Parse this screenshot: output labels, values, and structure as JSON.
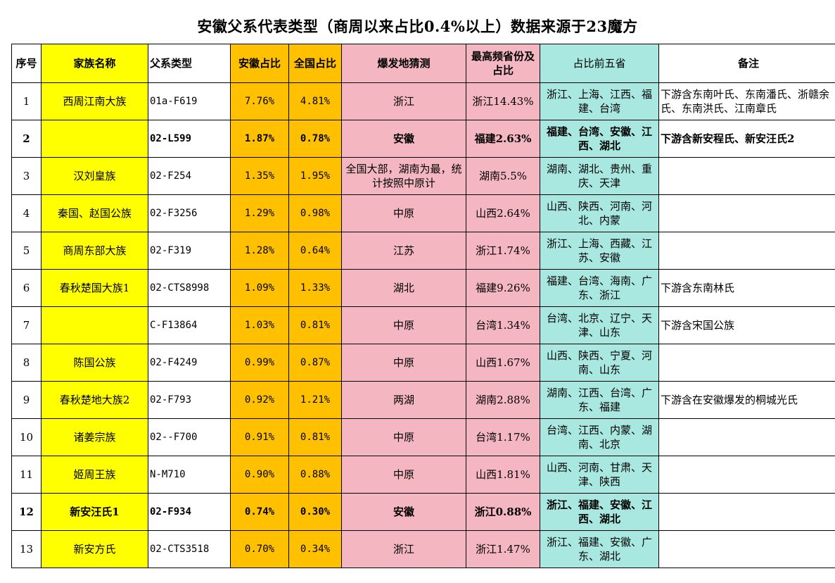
{
  "title": "安徽父系代表类型（商周以来占比0.4%以上）数据来源于23魔方",
  "headers": {
    "seq": "序号",
    "name": "家族名称",
    "type": "父系类型",
    "anhui": "安徽占比",
    "national": "全国占比",
    "origin": "爆发地猜测",
    "max": "最高频省份及占比",
    "top5": "占比前五省",
    "note": "备注"
  },
  "rows": [
    {
      "seq": "1",
      "name": "西周江南大族",
      "type": "01a-F619",
      "anhui": "7.76%",
      "national": "4.81%",
      "origin": "浙江",
      "max": "浙江14.43%",
      "top5": "浙江、上海、江西、福建、台湾",
      "note": "下游含东南叶氏、东南潘氏、浙赣余氏、东南洪氏、江南章氏",
      "bold": false
    },
    {
      "seq": "2",
      "name": "",
      "type": "02-L599",
      "anhui": "1.87%",
      "national": "0.78%",
      "origin": "安徽",
      "max": "福建2.63%",
      "top5": "福建、台湾、安徽、江西、湖北",
      "note": "下游含新安程氏、新安汪氏2",
      "bold": true
    },
    {
      "seq": "3",
      "name": "汉刘皇族",
      "type": "02-F254",
      "anhui": "1.35%",
      "national": "1.95%",
      "origin": "全国大部，湖南为最，统计按照中原计",
      "max": "湖南5.5%",
      "top5": "湖南、湖北、贵州、重庆、天津",
      "note": "",
      "bold": false
    },
    {
      "seq": "4",
      "name": "秦国、赵国公族",
      "type": "02-F3256",
      "anhui": "1.29%",
      "national": "0.98%",
      "origin": "中原",
      "max": "山西2.64%",
      "top5": "山西、陕西、河南、河北、内蒙",
      "note": "",
      "bold": false
    },
    {
      "seq": "5",
      "name": "商周东部大族",
      "type": "02-F319",
      "anhui": "1.28%",
      "national": "0.64%",
      "origin": "江苏",
      "max": "浙江1.74%",
      "top5": "浙江、上海、西藏、江苏、安徽",
      "note": "",
      "bold": false
    },
    {
      "seq": "6",
      "name": "春秋楚国大族1",
      "type": "02-CTS8998",
      "anhui": "1.09%",
      "national": "1.33%",
      "origin": "湖北",
      "max": "福建9.26%",
      "top5": "福建、台湾、海南、广东、浙江",
      "note": "下游含东南林氏",
      "bold": false
    },
    {
      "seq": "7",
      "name": "",
      "type": "C-F13864",
      "anhui": "1.03%",
      "national": "0.81%",
      "origin": "中原",
      "max": "台湾1.34%",
      "top5": "台湾、北京、辽宁、天津、山东",
      "note": "下游含宋国公族",
      "bold": false
    },
    {
      "seq": "8",
      "name": "陈国公族",
      "type": "02-F4249",
      "anhui": "0.99%",
      "national": "0.87%",
      "origin": "中原",
      "max": "山西1.67%",
      "top5": "山西、陕西、宁夏、河南、山东",
      "note": "",
      "bold": false
    },
    {
      "seq": "9",
      "name": "春秋楚地大族2",
      "type": "02-F793",
      "anhui": "0.92%",
      "national": "1.21%",
      "origin": "两湖",
      "max": "湖南2.88%",
      "top5": "湖南、江西、台湾、广东、福建",
      "note": "下游含在安徽爆发的桐城光氏",
      "bold": false
    },
    {
      "seq": "10",
      "name": "诸姜宗族",
      "type": "02--F700",
      "anhui": "0.91%",
      "national": "0.81%",
      "origin": "中原",
      "max": "台湾1.17%",
      "top5": "台湾、江西、内蒙、湖南、北京",
      "note": "",
      "bold": false
    },
    {
      "seq": "11",
      "name": "姬周王族",
      "type": "N-M710",
      "anhui": "0.90%",
      "national": "0.88%",
      "origin": "中原",
      "max": "山西1.81%",
      "top5": "山西、河南、甘肃、天津、陕西",
      "note": "",
      "bold": false
    },
    {
      "seq": "12",
      "name": "新安汪氏1",
      "type": "02-F934",
      "anhui": "0.74%",
      "national": "0.30%",
      "origin": "安徽",
      "max": "浙江0.88%",
      "top5": "浙江、福建、安徽、江西、湖北",
      "note": "",
      "bold": true
    },
    {
      "seq": "13",
      "name": "新安方氏",
      "type": "02-CTS3518",
      "anhui": "0.70%",
      "national": "0.34%",
      "origin": "浙江",
      "max": "浙江1.47%",
      "top5": "浙江、福建、安徽、广东、湖北",
      "note": "",
      "bold": false
    }
  ],
  "colors": {
    "yellow": "#ffff00",
    "orange": "#ffc000",
    "pink": "#f4b6c0",
    "teal": "#a9e8e0"
  }
}
